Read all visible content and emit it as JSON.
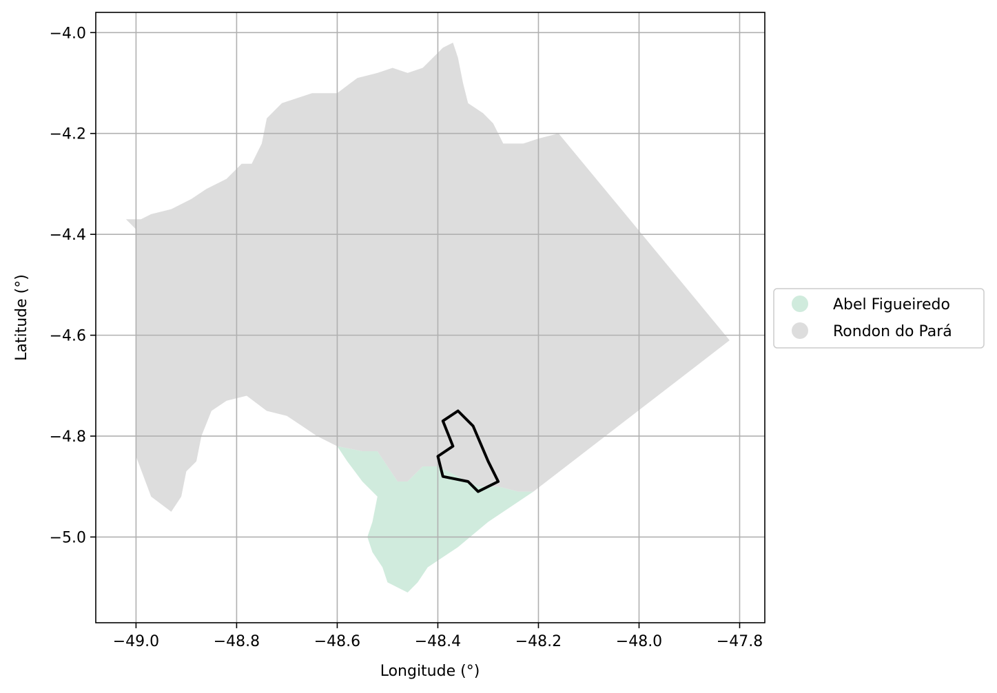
{
  "chart_data": {
    "type": "map",
    "xlabel": "Longitude (°)",
    "ylabel": "Latitude (°)",
    "xlim": [
      -49.08,
      -47.75
    ],
    "ylim": [
      -5.17,
      -3.96
    ],
    "grid": true,
    "x_ticks": [
      -49.0,
      -48.8,
      -48.6,
      -48.4,
      -48.2,
      -48.0,
      -47.8
    ],
    "x_tick_labels": [
      "−49.0",
      "−48.8",
      "−48.6",
      "−48.4",
      "−48.2",
      "−48.0",
      "−47.8"
    ],
    "y_ticks": [
      -4.0,
      -4.2,
      -4.4,
      -4.6,
      -4.8,
      -5.0
    ],
    "y_tick_labels": [
      "−4.0",
      "−4.2",
      "−4.4",
      "−4.6",
      "−4.8",
      "−5.0"
    ],
    "legend_position": "right",
    "regions": [
      {
        "name": "Abel Figueiredo",
        "color": "#d0ebdd",
        "polygon": [
          [
            -48.6,
            -4.82
          ],
          [
            -48.55,
            -4.83
          ],
          [
            -48.52,
            -4.83
          ],
          [
            -48.5,
            -4.86
          ],
          [
            -48.48,
            -4.89
          ],
          [
            -48.46,
            -4.89
          ],
          [
            -48.43,
            -4.86
          ],
          [
            -48.4,
            -4.86
          ],
          [
            -48.36,
            -4.88
          ],
          [
            -48.32,
            -4.9
          ],
          [
            -48.28,
            -4.9
          ],
          [
            -48.24,
            -4.91
          ],
          [
            -48.21,
            -4.91
          ],
          [
            -48.3,
            -4.97
          ],
          [
            -48.36,
            -5.02
          ],
          [
            -48.42,
            -5.06
          ],
          [
            -48.44,
            -5.09
          ],
          [
            -48.46,
            -5.11
          ],
          [
            -48.48,
            -5.1
          ],
          [
            -48.5,
            -5.09
          ],
          [
            -48.51,
            -5.06
          ],
          [
            -48.53,
            -5.03
          ],
          [
            -48.54,
            -5.0
          ],
          [
            -48.53,
            -4.97
          ],
          [
            -48.52,
            -4.92
          ],
          [
            -48.55,
            -4.89
          ],
          [
            -48.58,
            -4.85
          ]
        ]
      },
      {
        "name": "Rondon do Pará",
        "color": "#dddddd",
        "polygon": [
          [
            -49.02,
            -4.37
          ],
          [
            -48.99,
            -4.37
          ],
          [
            -48.97,
            -4.36
          ],
          [
            -48.93,
            -4.35
          ],
          [
            -48.89,
            -4.33
          ],
          [
            -48.86,
            -4.31
          ],
          [
            -48.82,
            -4.29
          ],
          [
            -48.79,
            -4.26
          ],
          [
            -48.77,
            -4.26
          ],
          [
            -48.75,
            -4.22
          ],
          [
            -48.74,
            -4.17
          ],
          [
            -48.71,
            -4.14
          ],
          [
            -48.68,
            -4.13
          ],
          [
            -48.65,
            -4.12
          ],
          [
            -48.6,
            -4.12
          ],
          [
            -48.56,
            -4.09
          ],
          [
            -48.52,
            -4.08
          ],
          [
            -48.49,
            -4.07
          ],
          [
            -48.46,
            -4.08
          ],
          [
            -48.43,
            -4.07
          ],
          [
            -48.41,
            -4.05
          ],
          [
            -48.39,
            -4.03
          ],
          [
            -48.37,
            -4.02
          ],
          [
            -48.36,
            -4.05
          ],
          [
            -48.35,
            -4.1
          ],
          [
            -48.34,
            -4.14
          ],
          [
            -48.31,
            -4.16
          ],
          [
            -48.29,
            -4.18
          ],
          [
            -48.27,
            -4.22
          ],
          [
            -48.23,
            -4.22
          ],
          [
            -48.2,
            -4.21
          ],
          [
            -48.16,
            -4.2
          ],
          [
            -47.82,
            -4.61
          ],
          [
            -48.21,
            -4.91
          ],
          [
            -48.24,
            -4.91
          ],
          [
            -48.28,
            -4.9
          ],
          [
            -48.32,
            -4.9
          ],
          [
            -48.36,
            -4.88
          ],
          [
            -48.4,
            -4.86
          ],
          [
            -48.43,
            -4.86
          ],
          [
            -48.46,
            -4.89
          ],
          [
            -48.48,
            -4.89
          ],
          [
            -48.5,
            -4.86
          ],
          [
            -48.52,
            -4.83
          ],
          [
            -48.55,
            -4.83
          ],
          [
            -48.6,
            -4.82
          ],
          [
            -48.64,
            -4.8
          ],
          [
            -48.67,
            -4.78
          ],
          [
            -48.7,
            -4.76
          ],
          [
            -48.74,
            -4.75
          ],
          [
            -48.78,
            -4.72
          ],
          [
            -48.82,
            -4.73
          ],
          [
            -48.85,
            -4.75
          ],
          [
            -48.87,
            -4.8
          ],
          [
            -48.88,
            -4.85
          ],
          [
            -48.9,
            -4.87
          ],
          [
            -48.91,
            -4.92
          ],
          [
            -48.93,
            -4.95
          ],
          [
            -48.97,
            -4.92
          ],
          [
            -49.0,
            -4.84
          ],
          [
            -49.0,
            -4.39
          ]
        ]
      }
    ],
    "outline": [
      [
        -48.36,
        -4.75
      ],
      [
        -48.39,
        -4.77
      ],
      [
        -48.37,
        -4.82
      ],
      [
        -48.4,
        -4.84
      ],
      [
        -48.39,
        -4.88
      ],
      [
        -48.34,
        -4.89
      ],
      [
        -48.32,
        -4.91
      ],
      [
        -48.28,
        -4.89
      ],
      [
        -48.3,
        -4.85
      ],
      [
        -48.33,
        -4.78
      ]
    ]
  },
  "legend": {
    "entries": [
      {
        "label": "Abel Figueiredo",
        "color": "#d0ebdd"
      },
      {
        "label": "Rondon do Pará",
        "color": "#dddddd"
      }
    ]
  }
}
